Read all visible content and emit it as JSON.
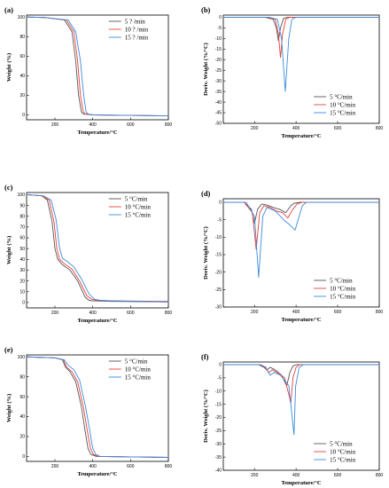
{
  "chart_data": [
    {
      "type": "line",
      "panel_label": "(a)",
      "xlabel": "Temperature/°C",
      "ylabel": "Weight (%)",
      "xlim": [
        50,
        800
      ],
      "ylim": [
        -5,
        102
      ],
      "xticks": [
        200,
        400,
        600,
        800
      ],
      "yticks": [
        0,
        20,
        40,
        60,
        80,
        100
      ],
      "legend_position": "top-right",
      "series": [
        {
          "name": "5 ? /min",
          "color": "#555555",
          "x": [
            50,
            150,
            250,
            290,
            310,
            325,
            340,
            350,
            400,
            600,
            800
          ],
          "y": [
            100,
            99.5,
            97,
            85,
            55,
            20,
            3,
            1,
            0,
            -0.5,
            -1
          ]
        },
        {
          "name": "10 ? /min",
          "color": "#e8413a",
          "x": [
            50,
            150,
            260,
            300,
            320,
            335,
            350,
            360,
            400,
            600,
            800
          ],
          "y": [
            100,
            99.5,
            97,
            85,
            55,
            20,
            3,
            1,
            0,
            -0.5,
            -1
          ]
        },
        {
          "name": "15 ? /min",
          "color": "#3a8be0",
          "x": [
            50,
            150,
            270,
            310,
            335,
            352,
            365,
            375,
            400,
            600,
            800
          ],
          "y": [
            100,
            99.5,
            97,
            85,
            55,
            20,
            3,
            1,
            0,
            -0.5,
            -1
          ]
        }
      ]
    },
    {
      "type": "line",
      "panel_label": "(b)",
      "xlabel": "Temperature/°C",
      "ylabel": "Deriv. Weight (%/°C)",
      "xlim": [
        50,
        800
      ],
      "ylim": [
        -50,
        1
      ],
      "xticks": [
        200,
        400,
        600,
        800
      ],
      "yticks": [
        0,
        -5,
        -10,
        -15,
        -20,
        -25,
        -30,
        -35,
        -40,
        -45,
        -50
      ],
      "legend_position": "bottom-right",
      "series": [
        {
          "name": "5 °C/min",
          "color": "#555555",
          "x": [
            50,
            250,
            290,
            305,
            315,
            325,
            340,
            360,
            800
          ],
          "y": [
            0,
            0,
            -1,
            -5,
            -11,
            -5,
            -0.5,
            0,
            0
          ]
        },
        {
          "name": "10 °C/min",
          "color": "#e8413a",
          "x": [
            50,
            260,
            300,
            315,
            325,
            335,
            350,
            370,
            800
          ],
          "y": [
            0,
            0,
            -1,
            -8,
            -19,
            -8,
            -1,
            0,
            0
          ]
        },
        {
          "name": "15 °C/min",
          "color": "#3a8be0",
          "x": [
            50,
            270,
            310,
            330,
            348,
            365,
            380,
            400,
            800
          ],
          "y": [
            0,
            0,
            -1,
            -10,
            -35,
            -10,
            -1,
            0,
            0
          ]
        }
      ]
    },
    {
      "type": "line",
      "panel_label": "(c)",
      "xlabel": "Temperature/°C",
      "ylabel": "Weight (%)",
      "xlim": [
        50,
        800
      ],
      "ylim": [
        -5,
        102
      ],
      "xticks": [
        200,
        400,
        600,
        800
      ],
      "yticks": [
        0,
        10,
        20,
        30,
        40,
        50,
        60,
        70,
        80,
        90,
        100
      ],
      "legend_position": "top-right",
      "series": [
        {
          "name": "5 °C/min",
          "color": "#555555",
          "x": [
            50,
            130,
            160,
            185,
            200,
            215,
            240,
            280,
            320,
            360,
            380,
            400,
            500,
            800
          ],
          "y": [
            100,
            99,
            95,
            75,
            50,
            40,
            35,
            30,
            20,
            5,
            2,
            1.5,
            1,
            0.5
          ]
        },
        {
          "name": "10 °C/min",
          "color": "#e8413a",
          "x": [
            50,
            130,
            170,
            195,
            210,
            225,
            250,
            290,
            330,
            370,
            395,
            420,
            500,
            800
          ],
          "y": [
            100,
            99,
            95,
            75,
            50,
            40,
            36,
            31,
            20,
            6,
            3,
            2,
            1.5,
            1
          ]
        },
        {
          "name": "15 °C/min",
          "color": "#3a8be0",
          "x": [
            50,
            140,
            180,
            205,
            225,
            240,
            265,
            300,
            340,
            380,
            410,
            440,
            500,
            800
          ],
          "y": [
            100,
            99,
            95,
            78,
            50,
            41,
            38,
            33,
            22,
            8,
            3,
            2,
            1.5,
            0.5
          ]
        }
      ]
    },
    {
      "type": "line",
      "panel_label": "(d)",
      "xlabel": "Temperature/°C",
      "ylabel": "Deriv. Weight (%/°C)",
      "xlim": [
        50,
        800
      ],
      "ylim": [
        -30,
        1
      ],
      "xticks": [
        200,
        400,
        600,
        800
      ],
      "yticks": [
        0,
        -5,
        -10,
        -15,
        -20,
        -25,
        -30
      ],
      "legend_position": "bottom-right",
      "series": [
        {
          "name": "5 °C/min",
          "color": "#555555",
          "x": [
            50,
            150,
            185,
            200,
            215,
            235,
            260,
            290,
            320,
            350,
            375,
            390,
            420,
            800
          ],
          "y": [
            0,
            0,
            -2,
            -6,
            -2,
            -0.5,
            -0.8,
            -1.5,
            -2,
            -3,
            -1,
            -0.3,
            0,
            0
          ]
        },
        {
          "name": "10 °C/min",
          "color": "#e8413a",
          "x": [
            50,
            150,
            190,
            208,
            225,
            245,
            275,
            305,
            335,
            360,
            385,
            405,
            430,
            800
          ],
          "y": [
            0,
            0,
            -3,
            -13.5,
            -3,
            -1,
            -1.5,
            -2.5,
            -3,
            -4.5,
            -2,
            -0.5,
            0,
            0
          ]
        },
        {
          "name": "15 °C/min",
          "color": "#3a8be0",
          "x": [
            50,
            160,
            200,
            220,
            240,
            260,
            300,
            340,
            370,
            395,
            410,
            430,
            450,
            800
          ],
          "y": [
            0,
            0,
            -4,
            -21.5,
            -4,
            -1.5,
            -2.5,
            -5,
            -6.5,
            -8,
            -5,
            -1,
            0,
            0
          ]
        }
      ]
    },
    {
      "type": "line",
      "panel_label": "(e)",
      "xlabel": "Temperature/°C",
      "ylabel": "Weight (%)",
      "xlim": [
        50,
        800
      ],
      "ylim": [
        -5,
        102
      ],
      "xticks": [
        200,
        400,
        600,
        800
      ],
      "yticks": [
        0,
        20,
        40,
        60,
        80,
        100
      ],
      "legend_position": "top-right",
      "series": [
        {
          "name": "5 °C/min",
          "color": "#555555",
          "x": [
            50,
            200,
            240,
            255,
            280,
            310,
            340,
            360,
            375,
            390,
            420,
            600,
            800
          ],
          "y": [
            100,
            99,
            97,
            90,
            85,
            75,
            50,
            25,
            8,
            2,
            0,
            -0.5,
            -1
          ]
        },
        {
          "name": "10 °C/min",
          "color": "#e8413a",
          "x": [
            50,
            200,
            245,
            260,
            290,
            320,
            350,
            372,
            388,
            403,
            430,
            600,
            800
          ],
          "y": [
            100,
            99,
            97,
            90,
            85,
            75,
            50,
            25,
            8,
            2,
            0,
            -0.5,
            -1
          ]
        },
        {
          "name": "15 °C/min",
          "color": "#3a8be0",
          "x": [
            50,
            200,
            250,
            268,
            300,
            330,
            362,
            385,
            400,
            416,
            440,
            600,
            800
          ],
          "y": [
            100,
            99,
            97,
            92,
            87,
            77,
            50,
            25,
            8,
            2,
            0,
            -0.5,
            -1
          ]
        }
      ]
    },
    {
      "type": "line",
      "panel_label": "(f)",
      "xlabel": "Temperature/°C",
      "ylabel": "Deriv. Weight (%/°C)",
      "xlim": [
        50,
        800
      ],
      "ylim": [
        -40,
        1
      ],
      "xticks": [
        200,
        400,
        600,
        800
      ],
      "yticks": [
        0,
        -5,
        -10,
        -15,
        -20,
        -25,
        -30,
        -35,
        -40
      ],
      "legend_position": "bottom-right",
      "series": [
        {
          "name": "5 °C/min",
          "color": "#555555",
          "x": [
            50,
            220,
            245,
            260,
            275,
            300,
            330,
            355,
            370,
            385,
            400,
            800
          ],
          "y": [
            0,
            0,
            -1,
            -2,
            -1,
            -2,
            -4,
            -8,
            -3,
            -0.5,
            0,
            0
          ]
        },
        {
          "name": "10 °C/min",
          "color": "#e8413a",
          "x": [
            50,
            225,
            250,
            268,
            285,
            310,
            345,
            375,
            385,
            400,
            415,
            800
          ],
          "y": [
            0,
            0,
            -1,
            -3,
            -2,
            -3,
            -5,
            -14.5,
            -5,
            -1,
            0,
            0
          ]
        },
        {
          "name": "15 °C/min",
          "color": "#3a8be0",
          "x": [
            50,
            230,
            255,
            275,
            295,
            325,
            365,
            390,
            398,
            415,
            435,
            800
          ],
          "y": [
            0,
            0,
            -1,
            -4,
            -3,
            -4,
            -8,
            -26.5,
            -8,
            -1,
            0,
            0
          ]
        }
      ]
    }
  ]
}
